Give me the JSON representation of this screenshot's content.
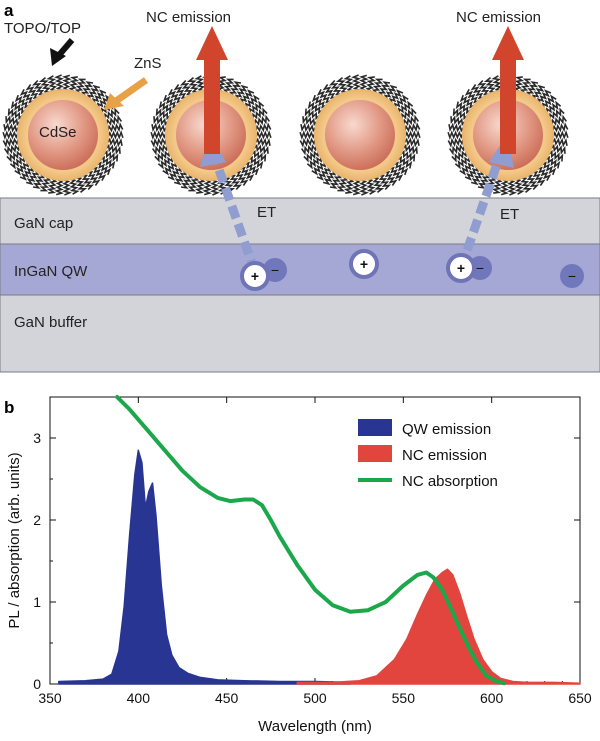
{
  "panel_a": {
    "label": "a",
    "texts": {
      "topo": "TOPO/TOP",
      "zns": "ZnS",
      "cdse": "CdSe",
      "nc_emission": "NC emission",
      "et": "ET",
      "gan_cap": "GaN cap",
      "ingan_qw": "InGaN QW",
      "gan_buffer": "GaN buffer",
      "plus": "+",
      "minus": "−"
    },
    "colors": {
      "core": "#d9897a",
      "shell": "#f3c888",
      "ligand": "#2a2a2a",
      "gan_cap": "#d3d4da",
      "ingan_qw": "#a5a8d4",
      "gan_buffer": "#d3d4da",
      "emission_arrow": "#d2452d",
      "et_arrow": "#8f9dd0",
      "charge": "#6f74b7",
      "pointer_arrow": "#e9a148"
    }
  },
  "panel_b": {
    "label": "b",
    "colors": {
      "qw": "#283593",
      "nc": "#e2453e",
      "abs": "#1aa84a"
    }
  },
  "chart_data": {
    "type": "area",
    "xlabel": "Wavelength (nm)",
    "ylabel": "PL / absorption (arb. units)",
    "xlim": [
      350,
      650
    ],
    "ylim": [
      0,
      3.5
    ],
    "xticks": [
      350,
      400,
      450,
      500,
      550,
      600,
      650
    ],
    "yticks": [
      0,
      1,
      2,
      3
    ],
    "legend_position": "top-right",
    "series": [
      {
        "name": "QW emission",
        "kind": "filled",
        "x": [
          355,
          370,
          380,
          385,
          389,
          392,
          395,
          398,
          400,
          402,
          404,
          406,
          408,
          410,
          413,
          416,
          419,
          423,
          428,
          435,
          445,
          460,
          480,
          500,
          520
        ],
        "y": [
          0.03,
          0.04,
          0.06,
          0.12,
          0.4,
          0.95,
          1.8,
          2.55,
          2.85,
          2.7,
          2.15,
          2.35,
          2.45,
          2.05,
          1.2,
          0.6,
          0.35,
          0.2,
          0.13,
          0.08,
          0.05,
          0.04,
          0.03,
          0.03,
          0.02
        ]
      },
      {
        "name": "NC emission",
        "kind": "filled",
        "x": [
          490,
          510,
          525,
          535,
          545,
          552,
          558,
          563,
          568,
          572,
          575,
          578,
          582,
          586,
          590,
          595,
          600,
          605,
          612,
          620,
          635,
          650
        ],
        "y": [
          0.02,
          0.02,
          0.04,
          0.1,
          0.3,
          0.55,
          0.85,
          1.08,
          1.28,
          1.36,
          1.4,
          1.33,
          1.1,
          0.82,
          0.55,
          0.3,
          0.15,
          0.07,
          0.03,
          0.02,
          0.02,
          0.01
        ]
      },
      {
        "name": "NC absorption",
        "kind": "line",
        "x": [
          388,
          395,
          405,
          415,
          425,
          435,
          445,
          452,
          460,
          465,
          470,
          475,
          480,
          490,
          500,
          510,
          520,
          530,
          540,
          550,
          558,
          563,
          567,
          572,
          577,
          582,
          587,
          592,
          597,
          603,
          607
        ],
        "y": [
          3.5,
          3.35,
          3.1,
          2.85,
          2.6,
          2.4,
          2.27,
          2.23,
          2.25,
          2.25,
          2.18,
          2.0,
          1.8,
          1.45,
          1.15,
          0.96,
          0.88,
          0.9,
          1.0,
          1.2,
          1.33,
          1.36,
          1.3,
          1.15,
          0.92,
          0.68,
          0.45,
          0.25,
          0.1,
          0.03,
          0.01
        ]
      }
    ]
  }
}
